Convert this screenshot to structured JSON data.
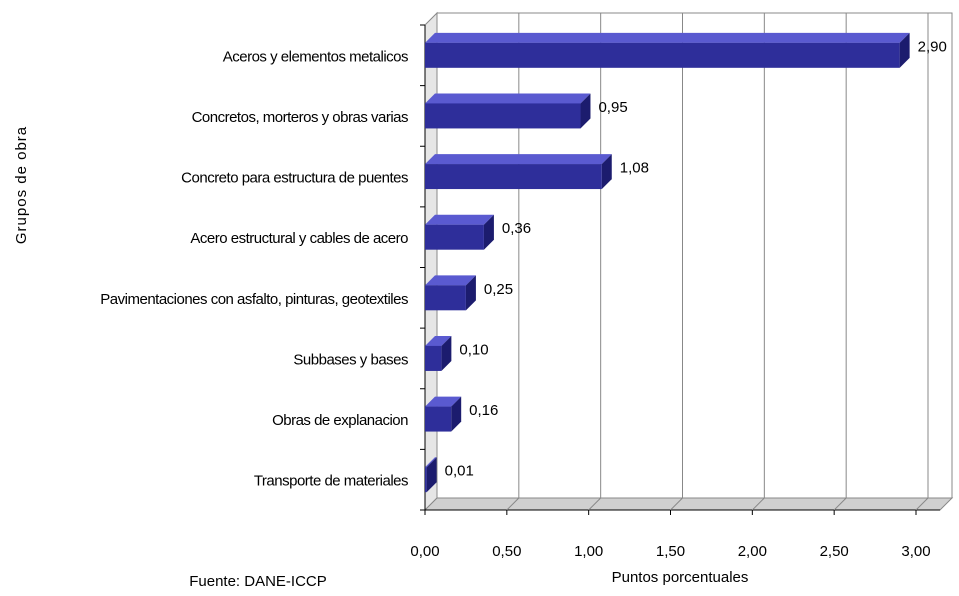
{
  "chart_data": {
    "type": "bar3d_horizontal",
    "x_label": "Puntos porcentuales",
    "y_label": "Grupos de obra",
    "note": "Fuente: DANE-ICCP",
    "categories": [
      "Aceros y elementos metalicos",
      "Concretos, morteros y obras varias",
      "Concreto para estructura de puentes",
      "Acero estructural y cables de acero",
      "Pavimentaciones con asfalto, pinturas, geotextiles",
      "Subbases y bases",
      "Obras de explanacion",
      "Transporte de materiales"
    ],
    "values": [
      2.9,
      0.95,
      1.08,
      0.36,
      0.25,
      0.1,
      0.16,
      0.01
    ],
    "value_labels": [
      "2,90",
      "0,95",
      "1,08",
      "0,36",
      "0,25",
      "0,10",
      "0,16",
      "0,01"
    ],
    "color": "#2e2e9a",
    "xlim": [
      0,
      3
    ],
    "xticks": [
      {
        "value": 0,
        "label": "0,00"
      },
      {
        "value": 0.5,
        "label": "0,50"
      },
      {
        "value": 1,
        "label": "1,00"
      },
      {
        "value": 1.5,
        "label": "1,50"
      },
      {
        "value": 2,
        "label": "2,00"
      },
      {
        "value": 2.5,
        "label": "2,50"
      },
      {
        "value": 3,
        "label": "3,00"
      }
    ],
    "grid": true
  }
}
